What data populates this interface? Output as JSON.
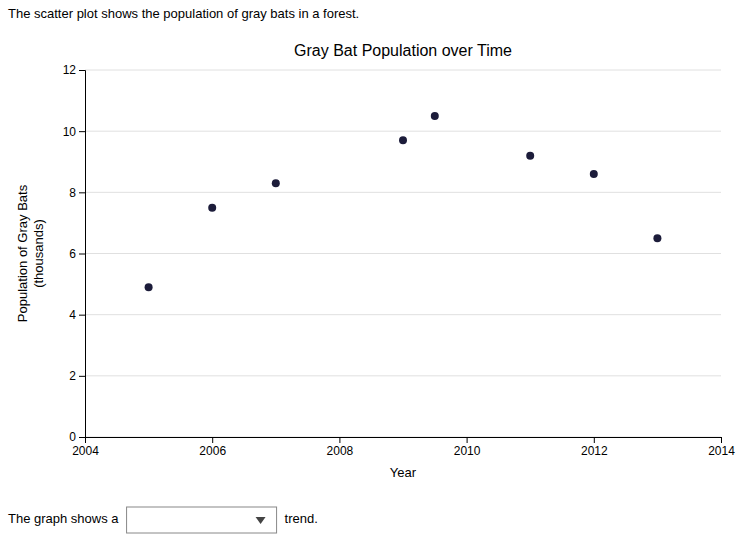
{
  "chart_data": {
    "type": "scatter",
    "title": "Gray Bat Population over Time",
    "subtitle": "The scatter plot shows the population of gray bats in a forest.",
    "xlabel": "Year",
    "ylabel": "Population of Gray Bats\n(thousands)",
    "x": [
      2005,
      2006,
      2007,
      2009,
      2009.5,
      2011,
      2012,
      2013
    ],
    "values": [
      4.9,
      7.5,
      8.3,
      9.7,
      10.5,
      9.2,
      8.6,
      6.5
    ],
    "color": "#1c1c3a",
    "xlim": [
      2004,
      2014
    ],
    "ylim": [
      0,
      12
    ],
    "xticks": [
      2004,
      2006,
      2008,
      2010,
      2012,
      2014
    ],
    "yticks": [
      0,
      2,
      4,
      6,
      8,
      10,
      12
    ],
    "grid": "y",
    "annotations": [
      "The graph shows a",
      "trend."
    ]
  }
}
